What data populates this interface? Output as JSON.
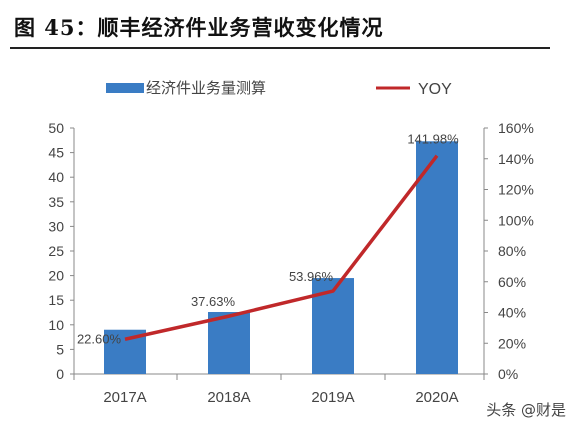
{
  "figure_title": "图 45：顺丰经济件业务营收变化情况",
  "watermark": "头条 @财是",
  "colors": {
    "bar": "#3a7cc4",
    "line": "#c0282a",
    "axis": "#888888",
    "text": "#444444"
  },
  "chart_data": {
    "type": "bar",
    "categories": [
      "2017A",
      "2018A",
      "2019A",
      "2020A"
    ],
    "series": [
      {
        "name": "经济件业务量测算",
        "type": "bar",
        "axis": "left",
        "values": [
          9,
          12.6,
          19.5,
          47.3
        ]
      },
      {
        "name": "YOY",
        "type": "line",
        "axis": "right",
        "values": [
          22.6,
          37.63,
          53.96,
          141.98
        ],
        "labels": [
          "22.60%",
          "37.63%",
          "53.96%",
          "141.98%"
        ]
      }
    ],
    "y_left": {
      "lim": [
        0,
        50
      ],
      "ticks": [
        0,
        5,
        10,
        15,
        20,
        25,
        30,
        35,
        40,
        45,
        50
      ],
      "tick_labels": [
        "0",
        "5",
        "10",
        "15",
        "20",
        "25",
        "30",
        "35",
        "40",
        "45",
        "50"
      ]
    },
    "y_right": {
      "lim": [
        0,
        160
      ],
      "ticks": [
        0,
        20,
        40,
        60,
        80,
        100,
        120,
        140,
        160
      ],
      "tick_labels": [
        "0%",
        "20%",
        "40%",
        "60%",
        "80%",
        "100%",
        "120%",
        "140%",
        "160%"
      ]
    },
    "legend": {
      "position": "top"
    },
    "grid": false
  }
}
